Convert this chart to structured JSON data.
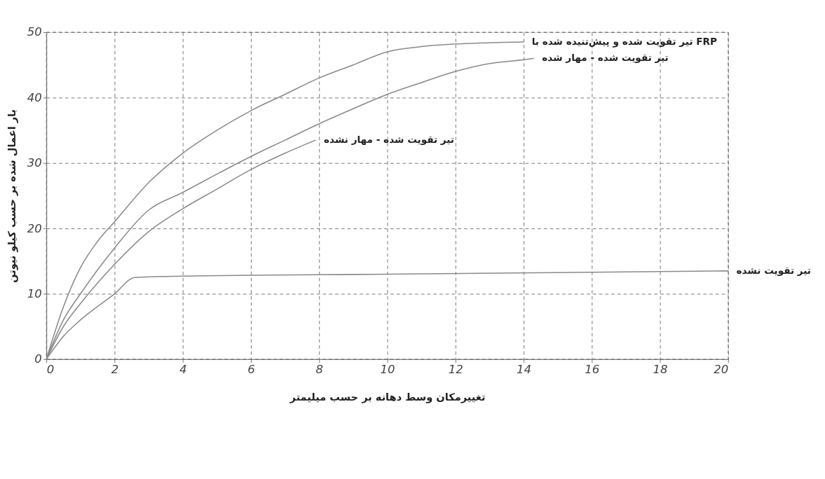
{
  "chart_data": {
    "type": "line",
    "xlabel": "تغییرمکان وسط دهانه بر حسب میلیمتر",
    "ylabel": "بار اعمال شده بر حسب کیلو نیوتن",
    "series": [
      {
        "name": "تیر تقویت شده و پیش‌تنیده شده با FRP",
        "color": "#8a8a8a",
        "x": [
          0,
          0.5,
          1,
          1.5,
          2,
          3,
          4,
          5,
          6,
          7,
          8,
          9,
          10,
          11,
          12,
          13,
          14
        ],
        "values": [
          0,
          8,
          14,
          18,
          21,
          27,
          31.5,
          35,
          38,
          40.5,
          43,
          45,
          47,
          47.8,
          48.2,
          48.4,
          48.5
        ]
      },
      {
        "name": "تیر تقویت شده - مهار شده",
        "color": "#8a8a8a",
        "x": [
          0,
          0.5,
          1,
          2,
          3,
          4,
          5,
          6,
          7,
          8,
          9,
          10,
          11,
          12,
          13,
          14,
          14.3
        ],
        "values": [
          0,
          6,
          10,
          17,
          22.8,
          25.5,
          28.3,
          31,
          33.5,
          36,
          38.3,
          40.5,
          42.3,
          44,
          45.2,
          45.8,
          46
        ]
      },
      {
        "name": "تیر تقویت شده - مهار نشده",
        "color": "#8a8a8a",
        "x": [
          0,
          0.5,
          1,
          2,
          3,
          4,
          5,
          6,
          7,
          7.9
        ],
        "values": [
          0,
          5,
          8.5,
          14.5,
          19.5,
          23,
          26,
          29,
          31.5,
          33.5
        ]
      },
      {
        "name": "تیر تقویت نشده",
        "color": "#8a8a8a",
        "x": [
          0,
          0.5,
          1,
          2,
          2.6,
          4,
          10,
          20
        ],
        "values": [
          0,
          3.5,
          6,
          10,
          12.5,
          12.7,
          13,
          13.5
        ]
      }
    ],
    "xlim": [
      0,
      20
    ],
    "xticks": [
      0,
      2,
      4,
      6,
      8,
      10,
      12,
      14,
      16,
      18,
      20
    ],
    "ylim": [
      0,
      50
    ],
    "yticks": [
      0,
      10,
      20,
      30,
      40,
      50
    ],
    "grid": true,
    "legend": false,
    "marker": "none",
    "line_style": "solid"
  }
}
